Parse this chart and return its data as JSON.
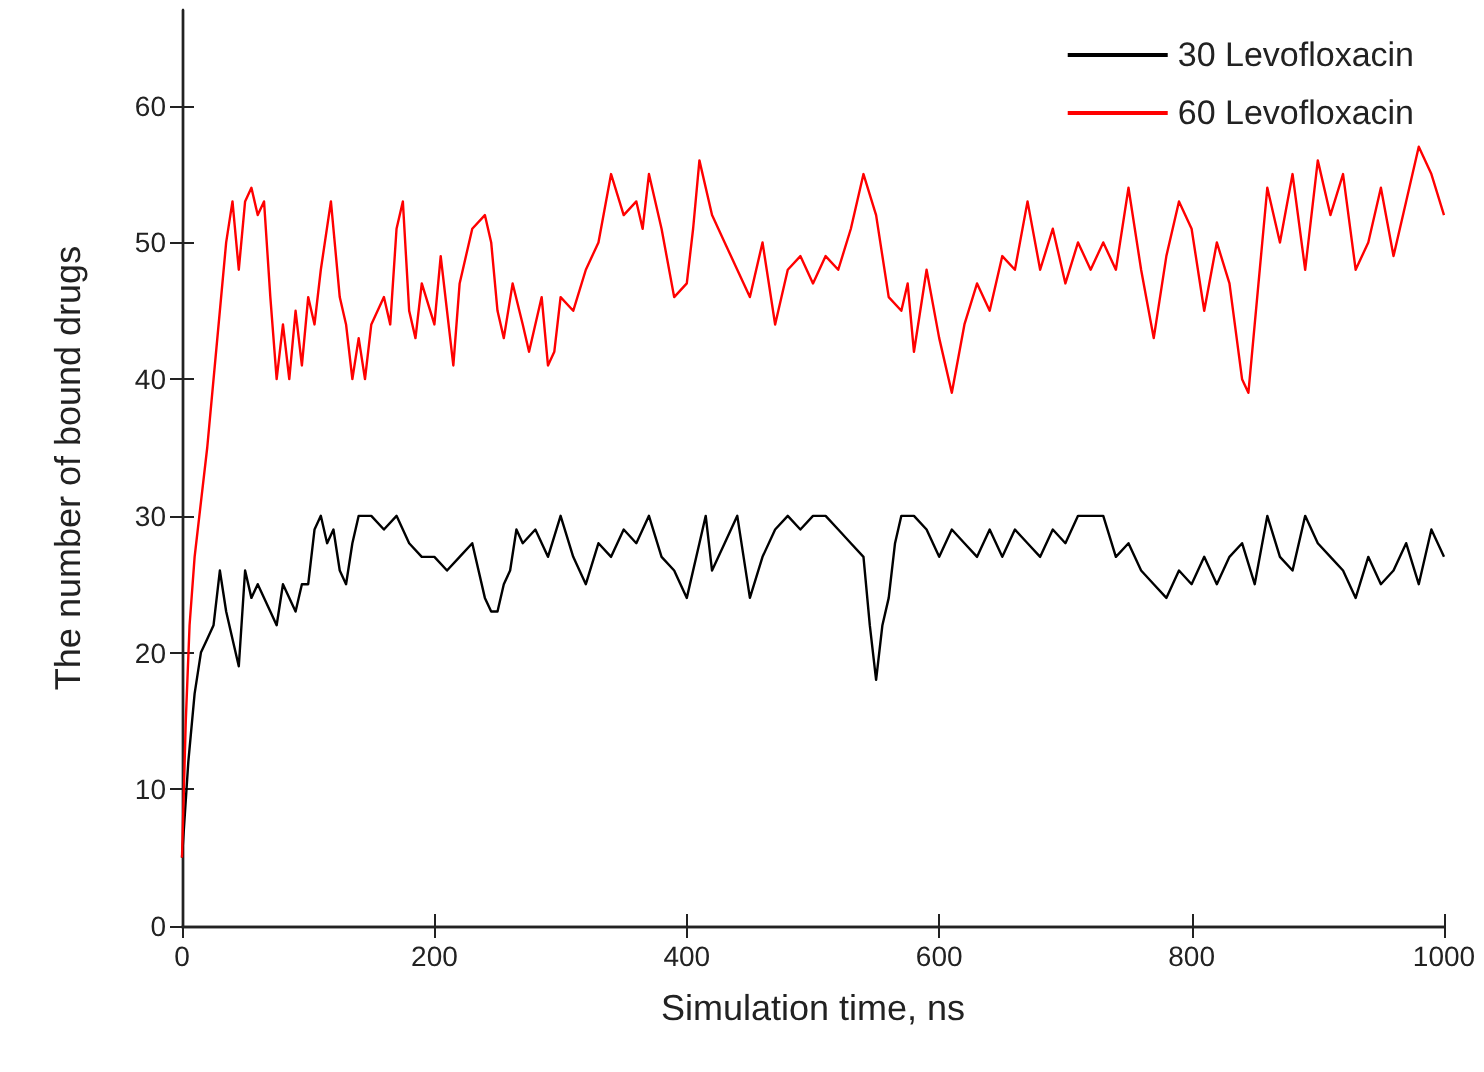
{
  "chart_data": {
    "type": "line",
    "xlabel": "Simulation time, ns",
    "ylabel": "The number of bound drugs",
    "xlim": [
      0,
      1000
    ],
    "xticks": [
      0,
      200,
      400,
      600,
      800,
      1000
    ],
    "ylim": [
      0,
      67
    ],
    "yticks": [
      0,
      10,
      20,
      30,
      40,
      50,
      60
    ],
    "grid": false,
    "legend": "top right",
    "marker": "none",
    "line_style": "solid",
    "series": [
      {
        "name": "30 Levofloxacin",
        "color": "#000000",
        "x": [
          0,
          5,
          10,
          15,
          20,
          25,
          30,
          35,
          40,
          45,
          50,
          55,
          60,
          70,
          75,
          80,
          90,
          95,
          100,
          105,
          110,
          115,
          120,
          125,
          130,
          135,
          140,
          150,
          160,
          170,
          180,
          190,
          200,
          210,
          220,
          230,
          240,
          245,
          250,
          255,
          260,
          265,
          270,
          280,
          290,
          300,
          310,
          320,
          330,
          340,
          350,
          360,
          370,
          380,
          390,
          400,
          410,
          415,
          420,
          430,
          440,
          450,
          460,
          470,
          480,
          490,
          500,
          510,
          520,
          530,
          540,
          545,
          550,
          555,
          560,
          565,
          570,
          580,
          590,
          600,
          610,
          620,
          630,
          640,
          650,
          660,
          670,
          680,
          690,
          700,
          710,
          720,
          730,
          740,
          750,
          760,
          770,
          780,
          790,
          800,
          810,
          820,
          830,
          840,
          850,
          860,
          870,
          880,
          890,
          900,
          910,
          920,
          930,
          940,
          950,
          960,
          970,
          980,
          990,
          1000
        ],
        "values": [
          5,
          12,
          17,
          20,
          21,
          22,
          26,
          23,
          21,
          19,
          26,
          24,
          25,
          23,
          22,
          25,
          23,
          25,
          25,
          29,
          30,
          28,
          29,
          26,
          25,
          28,
          30,
          30,
          29,
          30,
          28,
          27,
          27,
          26,
          27,
          28,
          24,
          23,
          23,
          25,
          26,
          29,
          28,
          29,
          27,
          30,
          27,
          25,
          28,
          27,
          29,
          28,
          30,
          27,
          26,
          24,
          28,
          30,
          26,
          28,
          30,
          24,
          27,
          29,
          30,
          29,
          30,
          30,
          29,
          28,
          27,
          22,
          18,
          22,
          24,
          28,
          30,
          30,
          29,
          27,
          29,
          28,
          27,
          29,
          27,
          29,
          28,
          27,
          29,
          28,
          30,
          30,
          30,
          27,
          28,
          26,
          25,
          24,
          26,
          25,
          27,
          25,
          27,
          28,
          25,
          30,
          27,
          26,
          30,
          28,
          27,
          26,
          24,
          27,
          25,
          26,
          28,
          25,
          29,
          27
        ]
      },
      {
        "name": "60 Levofloxacin",
        "color": "#ff0000",
        "x": [
          0,
          3,
          6,
          10,
          15,
          20,
          25,
          30,
          35,
          40,
          45,
          50,
          55,
          60,
          65,
          70,
          75,
          80,
          85,
          90,
          95,
          100,
          105,
          110,
          118,
          125,
          130,
          135,
          140,
          145,
          150,
          160,
          165,
          170,
          175,
          180,
          185,
          190,
          200,
          205,
          210,
          215,
          220,
          230,
          240,
          245,
          250,
          255,
          262,
          270,
          275,
          285,
          290,
          295,
          300,
          310,
          320,
          330,
          340,
          350,
          360,
          365,
          370,
          380,
          390,
          400,
          405,
          410,
          420,
          425,
          430,
          440,
          450,
          460,
          470,
          480,
          490,
          500,
          510,
          520,
          530,
          540,
          550,
          560,
          570,
          575,
          580,
          590,
          600,
          610,
          620,
          630,
          640,
          650,
          660,
          670,
          680,
          690,
          700,
          710,
          720,
          730,
          740,
          750,
          760,
          770,
          780,
          790,
          800,
          810,
          820,
          830,
          840,
          845,
          850,
          860,
          870,
          880,
          890,
          900,
          910,
          920,
          930,
          940,
          950,
          960,
          970,
          980,
          990,
          1000
        ],
        "values": [
          5,
          15,
          22,
          27,
          31,
          35,
          40,
          45,
          50,
          53,
          48,
          53,
          54,
          52,
          53,
          46,
          40,
          44,
          40,
          45,
          41,
          46,
          44,
          48,
          53,
          46,
          44,
          40,
          43,
          40,
          44,
          46,
          44,
          51,
          53,
          45,
          43,
          47,
          44,
          49,
          45,
          41,
          47,
          51,
          52,
          50,
          45,
          43,
          47,
          44,
          42,
          46,
          41,
          42,
          46,
          45,
          48,
          50,
          55,
          52,
          53,
          51,
          55,
          51,
          46,
          47,
          51,
          56,
          52,
          51,
          50,
          48,
          46,
          50,
          44,
          48,
          49,
          47,
          49,
          48,
          51,
          55,
          52,
          46,
          45,
          47,
          42,
          48,
          43,
          39,
          44,
          47,
          45,
          49,
          48,
          53,
          48,
          51,
          47,
          50,
          48,
          50,
          48,
          54,
          48,
          43,
          49,
          53,
          51,
          45,
          50,
          47,
          40,
          39,
          44,
          54,
          50,
          55,
          48,
          56,
          52,
          55,
          48,
          50,
          54,
          49,
          53,
          57,
          55,
          52
        ]
      }
    ]
  }
}
